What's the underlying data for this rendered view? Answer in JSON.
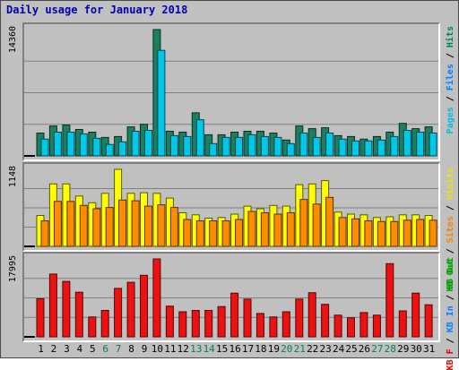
{
  "chart_data": {
    "type": "bar",
    "title": "Daily usage for January 2018",
    "categories": [
      "1",
      "2",
      "3",
      "4",
      "5",
      "6",
      "7",
      "8",
      "9",
      "10",
      "11",
      "12",
      "13",
      "14",
      "15",
      "16",
      "17",
      "18",
      "19",
      "20",
      "21",
      "22",
      "23",
      "24",
      "25",
      "26",
      "27",
      "28",
      "29",
      "30",
      "31"
    ],
    "weekend_days": [
      6,
      7,
      13,
      14,
      20,
      21,
      27,
      28
    ],
    "panels": [
      {
        "id": "hits",
        "max_label": "14360",
        "ymax": 14360,
        "grid": true,
        "side_labels": [
          {
            "text": "Pages",
            "color": "#00c0e0"
          },
          {
            "text": " / ",
            "color": "#000000"
          },
          {
            "text": "Files",
            "color": "#0080ff"
          },
          {
            "text": " / ",
            "color": "#000000"
          },
          {
            "text": "Hits",
            "color": "#008060"
          }
        ],
        "series": [
          {
            "name": "Hits",
            "color": "#1a8060",
            "values": [
              2600,
              3400,
              3500,
              3000,
              2700,
              2100,
              2200,
              3300,
              3600,
              14360,
              2800,
              2700,
              4900,
              2400,
              2400,
              2700,
              2800,
              2800,
              2600,
              1800,
              3400,
              3100,
              3200,
              2300,
              2200,
              1900,
              2200,
              2700,
              3700,
              3100,
              3300
            ]
          },
          {
            "name": "Files",
            "color": "#00c8e8",
            "values": [
              1900,
              2700,
              2700,
              2500,
              2000,
              1300,
              1600,
              2800,
              2900,
              12000,
              2300,
              2200,
              4100,
              1400,
              2100,
              2100,
              2400,
              2200,
              2100,
              1400,
              2600,
              2100,
              2600,
              1900,
              1700,
              1700,
              1800,
              2200,
              2900,
              2700,
              2600
            ]
          }
        ]
      },
      {
        "id": "kb",
        "max_label": "1148",
        "ymax": 1148,
        "grid": true,
        "side_labels": [
          {
            "text": "KB Out",
            "color": "#00a000"
          },
          {
            "text": " / ",
            "color": "#000000"
          },
          {
            "text": "Sites",
            "color": "#ff8000"
          },
          {
            "text": " / ",
            "color": "#000000"
          },
          {
            "text": "Visits",
            "color": "#e8e800"
          }
        ],
        "series": [
          {
            "name": "Visits",
            "color": "#ffff00",
            "values": [
              460,
              930,
              930,
              750,
              650,
              790,
              1148,
              790,
              800,
              790,
              720,
              500,
              470,
              420,
              430,
              480,
              600,
              560,
              610,
              600,
              920,
              930,
              980,
              510,
              480,
              470,
              430,
              440,
              470,
              470,
              460
            ]
          },
          {
            "name": "Sites",
            "color": "#ff8c00",
            "values": [
              380,
              670,
              670,
              610,
              560,
              580,
              690,
              680,
              600,
              620,
              580,
              400,
              380,
              380,
              380,
              400,
              520,
              500,
              480,
              500,
              700,
              630,
              730,
              430,
              410,
              380,
              370,
              370,
              390,
              400,
              390
            ]
          }
        ]
      },
      {
        "id": "kbf",
        "max_label": "17995",
        "ymax": 17995,
        "grid": true,
        "side_labels": [
          {
            "text": "KB F",
            "color": "#e00000"
          },
          {
            "text": " / ",
            "color": "#000000"
          },
          {
            "text": "KB In",
            "color": "#0080ff"
          },
          {
            "text": " / ",
            "color": "#000000"
          },
          {
            "text": "KB Out",
            "color": "#00a000"
          }
        ],
        "series": [
          {
            "name": "KB F",
            "color": "#ee1111",
            "values": [
              8800,
              14500,
              12800,
              10300,
              4600,
              6100,
              11200,
              12600,
              14200,
              17995,
              7100,
              5800,
              6100,
              6100,
              7000,
              10100,
              8700,
              5400,
              4600,
              5800,
              8700,
              10200,
              7500,
              5000,
              4400,
              5600,
              5000,
              16900,
              6000,
              10100,
              7400
            ]
          }
        ]
      }
    ]
  }
}
